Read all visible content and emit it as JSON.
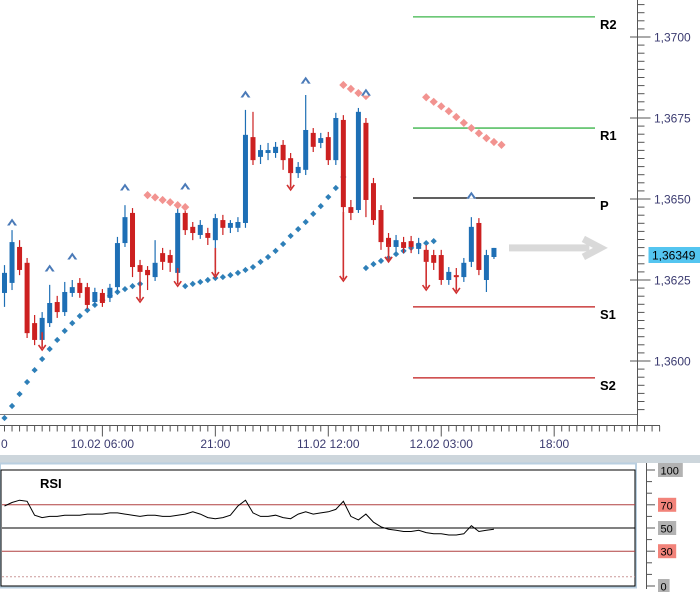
{
  "colors": {
    "candle_up": "#1e6fb5",
    "candle_down": "#cc2020",
    "sar_below": "#2e7fb8",
    "sar_above": "#f29390",
    "arrow_up": "#4a7ab8",
    "arrow_down": "#d03030",
    "axis_text": "#3b3b70",
    "axis_line": "#7a7a7a",
    "price_tag_bg": "#54c5f0",
    "separator": "#cdd6dc",
    "rsi_frame": "#b9cfe0",
    "rsi_level_red": "#b04040",
    "rsi_dotted": "#cc9999",
    "projection": "#d9d9d9",
    "label_bg_gray": "#b2b2b2",
    "label_bg_red": "#f2837a"
  },
  "chart_data": [
    {
      "type": "candlestick",
      "description": "Hourly FX candlestick chart with parabolic-SAR dots, trade signal arrows, pivot levels and projected price arrow",
      "ylim": [
        1.35836,
        1.37114
      ],
      "price_axis": {
        "tick_labels": [
          "1,3700",
          "1,3675",
          "1,3650",
          "1,3625",
          "1,3600"
        ],
        "tick_values": [
          1.37,
          1.3675,
          1.365,
          1.3625,
          1.36
        ],
        "current_price": 1.36349,
        "current_price_label": "1,36349"
      },
      "time_axis": {
        "tick_labels": [
          "10.02 06:00",
          "21:00",
          "11.02 12:00",
          "12.02 03:00",
          "18:00"
        ],
        "tick_indices": [
          13,
          28,
          43,
          58,
          73
        ],
        "partial_left_label": "0"
      },
      "pivot_levels": [
        {
          "label": "R2",
          "value": 1.37062,
          "color": "#3cb54a"
        },
        {
          "label": "R1",
          "value": 1.36719,
          "color": "#3cb54a"
        },
        {
          "label": "P",
          "value": 1.36503,
          "color": "#000000"
        },
        {
          "label": "S1",
          "value": 1.36167,
          "color": "#c01818"
        },
        {
          "label": "S2",
          "value": 1.35948,
          "color": "#c01818"
        }
      ],
      "start_index": -1,
      "candles": [
        [
          1.36204,
          1.36231,
          1.36148,
          1.36173
        ],
        [
          1.3621,
          1.36296,
          1.36167,
          1.36272
        ],
        [
          1.36241,
          1.36404,
          1.36219,
          1.36367
        ],
        [
          1.36352,
          1.36373,
          1.36265,
          1.36281
        ],
        [
          1.36303,
          1.36318,
          1.36071,
          1.36086
        ],
        [
          1.36117,
          1.36142,
          1.36049,
          1.36065
        ],
        [
          1.36065,
          1.36151,
          1.36049,
          1.36133
        ],
        [
          1.36117,
          1.36235,
          1.36105,
          1.36179
        ],
        [
          1.36182,
          1.36201,
          1.36133,
          1.36151
        ],
        [
          1.36151,
          1.36244,
          1.36139,
          1.36213
        ],
        [
          1.3621,
          1.3625,
          1.36198,
          1.36228
        ],
        [
          1.36241,
          1.36256,
          1.36195,
          1.3621
        ],
        [
          1.36228,
          1.36241,
          1.36161,
          1.36173
        ],
        [
          1.36182,
          1.36226,
          1.3617,
          1.36213
        ],
        [
          1.3621,
          1.36222,
          1.36167,
          1.36179
        ],
        [
          1.36195,
          1.36238,
          1.36182,
          1.36226
        ],
        [
          1.36228,
          1.36383,
          1.36213,
          1.36364
        ],
        [
          1.36364,
          1.36481,
          1.36352,
          1.36444
        ],
        [
          1.36457,
          1.36472,
          1.36259,
          1.3629
        ],
        [
          1.36296,
          1.36312,
          1.3621,
          1.36275
        ],
        [
          1.36281,
          1.36293,
          1.36219,
          1.36265
        ],
        [
          1.36259,
          1.36373,
          1.36247,
          1.36303
        ],
        [
          1.36333,
          1.36349,
          1.36281,
          1.36306
        ],
        [
          1.36327,
          1.36343,
          1.36275,
          1.36303
        ],
        [
          1.36272,
          1.36472,
          1.36256,
          1.36457
        ],
        [
          1.36457,
          1.36469,
          1.36389,
          1.36404
        ],
        [
          1.36414,
          1.36429,
          1.36373,
          1.36395
        ],
        [
          1.36389,
          1.36435,
          1.36377,
          1.3642
        ],
        [
          1.36395,
          1.36411,
          1.36358,
          1.3638
        ],
        [
          1.36373,
          1.36454,
          1.3629,
          1.36441
        ],
        [
          1.36435,
          1.36451,
          1.36389,
          1.36411
        ],
        [
          1.36411,
          1.36435,
          1.36395,
          1.36426
        ],
        [
          1.36411,
          1.36444,
          1.36398,
          1.36429
        ],
        [
          1.36426,
          1.36775,
          1.36411,
          1.36698
        ],
        [
          1.36691,
          1.36769,
          1.36605,
          1.3662
        ],
        [
          1.3663,
          1.36667,
          1.36608,
          1.36651
        ],
        [
          1.36642,
          1.36673,
          1.3662,
          1.36651
        ],
        [
          1.36642,
          1.36676,
          1.36627,
          1.36661
        ],
        [
          1.36667,
          1.36682,
          1.3659,
          1.3662
        ],
        [
          1.36626,
          1.36642,
          1.36559,
          1.3658
        ],
        [
          1.3658,
          1.36614,
          1.36565,
          1.36599
        ],
        [
          1.3659,
          1.36821,
          1.36574,
          1.36713
        ],
        [
          1.36704,
          1.36719,
          1.36645,
          1.36661
        ],
        [
          1.36673,
          1.36704,
          1.36657,
          1.36688
        ],
        [
          1.36691,
          1.36707,
          1.36605,
          1.3662
        ],
        [
          1.3662,
          1.36766,
          1.36605,
          1.3675
        ],
        [
          1.36744,
          1.36759,
          1.36272,
          1.36475
        ],
        [
          1.36475,
          1.36497,
          1.36435,
          1.36457
        ],
        [
          1.36466,
          1.36781,
          1.36457,
          1.36769
        ],
        [
          1.36735,
          1.3675,
          1.36444,
          1.36497
        ],
        [
          1.36549,
          1.36565,
          1.3642,
          1.36435
        ],
        [
          1.36466,
          1.36481,
          1.36343,
          1.36367
        ],
        [
          1.3638,
          1.36395,
          1.36337,
          1.36352
        ],
        [
          1.36352,
          1.36389,
          1.36337,
          1.36373
        ],
        [
          1.36367,
          1.36383,
          1.36333,
          1.36349
        ],
        [
          1.3637,
          1.36386,
          1.36333,
          1.36352
        ],
        [
          1.36346,
          1.3638,
          1.3633,
          1.36364
        ],
        [
          1.36343,
          1.36358,
          1.3625,
          1.36306
        ],
        [
          1.36327,
          1.36343,
          1.36281,
          1.36303
        ],
        [
          1.36327,
          1.36343,
          1.36235,
          1.3625
        ],
        [
          1.3625,
          1.3629,
          1.36235,
          1.36275
        ],
        [
          1.36265,
          1.36287,
          1.36238,
          1.36259
        ],
        [
          1.36259,
          1.36318,
          1.36244,
          1.36303
        ],
        [
          1.36306,
          1.36444,
          1.3629,
          1.36414
        ],
        [
          1.36426,
          1.36441,
          1.36265,
          1.36281
        ],
        [
          1.3625,
          1.36343,
          1.36213,
          1.36327
        ],
        [
          1.36321,
          1.36349,
          1.36315,
          1.36349
        ]
      ],
      "sar_below": [
        [
          0,
          1.35824
        ],
        [
          1,
          1.35861
        ],
        [
          2,
          1.35898
        ],
        [
          3,
          1.35935
        ],
        [
          4,
          1.35972
        ],
        [
          5,
          1.36006
        ],
        [
          6,
          1.36037
        ],
        [
          7,
          1.36065
        ],
        [
          8,
          1.36093
        ],
        [
          9,
          1.36117
        ],
        [
          10,
          1.36139
        ],
        [
          11,
          1.36157
        ],
        [
          12,
          1.36173
        ],
        [
          13,
          1.36188
        ],
        [
          14,
          1.36201
        ],
        [
          15,
          1.36213
        ],
        [
          16,
          1.36222
        ],
        [
          17,
          1.36231
        ],
        [
          18,
          1.36238
        ],
        [
          24,
          1.36231
        ],
        [
          25,
          1.36238
        ],
        [
          26,
          1.36244
        ],
        [
          27,
          1.3625
        ],
        [
          28,
          1.36256
        ],
        [
          29,
          1.36259
        ],
        [
          30,
          1.36265
        ],
        [
          31,
          1.36272
        ],
        [
          32,
          1.36281
        ],
        [
          33,
          1.3629
        ],
        [
          34,
          1.36306
        ],
        [
          35,
          1.36321
        ],
        [
          36,
          1.3634
        ],
        [
          37,
          1.36361
        ],
        [
          38,
          1.36386
        ],
        [
          39,
          1.36407
        ],
        [
          40,
          1.36429
        ],
        [
          41,
          1.36454
        ],
        [
          42,
          1.36478
        ],
        [
          43,
          1.36506
        ],
        [
          44,
          1.36534
        ],
        [
          45,
          1.36568
        ],
        [
          48,
          1.36287
        ],
        [
          49,
          1.36299
        ],
        [
          50,
          1.36309
        ],
        [
          51,
          1.36318
        ],
        [
          52,
          1.3633
        ],
        [
          53,
          1.3634
        ],
        [
          54,
          1.36349
        ],
        [
          55,
          1.36358
        ],
        [
          56,
          1.36364
        ],
        [
          57,
          1.3637
        ]
      ],
      "sar_above": [
        [
          19,
          1.36512
        ],
        [
          20,
          1.36505
        ],
        [
          21,
          1.36497
        ],
        [
          22,
          1.3649
        ],
        [
          23,
          1.36481
        ],
        [
          24,
          1.36475
        ],
        [
          45,
          1.36852
        ],
        [
          46,
          1.3684
        ],
        [
          47,
          1.36827
        ],
        [
          48,
          1.36818
        ],
        [
          56,
          1.36814
        ],
        [
          57,
          1.368
        ],
        [
          58,
          1.36786
        ],
        [
          59,
          1.36771
        ],
        [
          60,
          1.36753
        ],
        [
          61,
          1.36735
        ],
        [
          62,
          1.36719
        ],
        [
          63,
          1.36703
        ],
        [
          64,
          1.36688
        ],
        [
          65,
          1.36676
        ],
        [
          66,
          1.36667
        ]
      ],
      "up_arrows": [
        [
          1,
          1.36429
        ],
        [
          6,
          1.36287
        ],
        [
          9,
          1.36324
        ],
        [
          16,
          1.36537
        ],
        [
          24,
          1.3654
        ],
        [
          32,
          1.36824
        ],
        [
          40,
          1.36867
        ],
        [
          48,
          1.3683
        ],
        [
          62,
          1.36512
        ]
      ],
      "down_arrows": [
        [
          5,
          1.36034,
          1.36089
        ],
        [
          18,
          1.36182,
          1.36238
        ],
        [
          23,
          1.36231,
          1.36287
        ],
        [
          28,
          1.36259,
          1.36349
        ],
        [
          38,
          1.36528,
          1.36583
        ],
        [
          45,
          1.36247,
          1.3646
        ],
        [
          51,
          1.36306,
          1.36361
        ],
        [
          56,
          1.36219,
          1.36343
        ],
        [
          60,
          1.3621,
          1.36265
        ]
      ],
      "projection_arrow": {
        "price": 1.36349,
        "from_index": 67,
        "to_index": 79
      }
    },
    {
      "type": "line",
      "name": "RSI",
      "ylim": [
        0,
        100
      ],
      "values": [
        69,
        72,
        74,
        73,
        61,
        59,
        60,
        60,
        61,
        61,
        61,
        62,
        62,
        62,
        63,
        63,
        62,
        61,
        60,
        61,
        61,
        60,
        60,
        61,
        62,
        64,
        62,
        59,
        58,
        59,
        61,
        69,
        74,
        63,
        60,
        60,
        61,
        59,
        58,
        62,
        64,
        62,
        63,
        64,
        66,
        73,
        60,
        57,
        62,
        55,
        51,
        49,
        48,
        47,
        47,
        48,
        46,
        45,
        45,
        44,
        44,
        45,
        52,
        47,
        48,
        49
      ],
      "levels": [
        {
          "value": 100,
          "label": "100",
          "line": "black",
          "label_bg": "#b2b2b2"
        },
        {
          "value": 70,
          "label": "70",
          "line": "red",
          "label_bg": "#f2837a"
        },
        {
          "value": 50,
          "label": "50",
          "line": "black",
          "label_bg": "#b2b2b2"
        },
        {
          "value": 30,
          "label": "30",
          "line": "red",
          "label_bg": "#f2837a"
        },
        {
          "value": 0,
          "label": "0",
          "line": "black",
          "label_bg": "#b2b2b2"
        }
      ],
      "dotted_level": 8
    }
  ]
}
